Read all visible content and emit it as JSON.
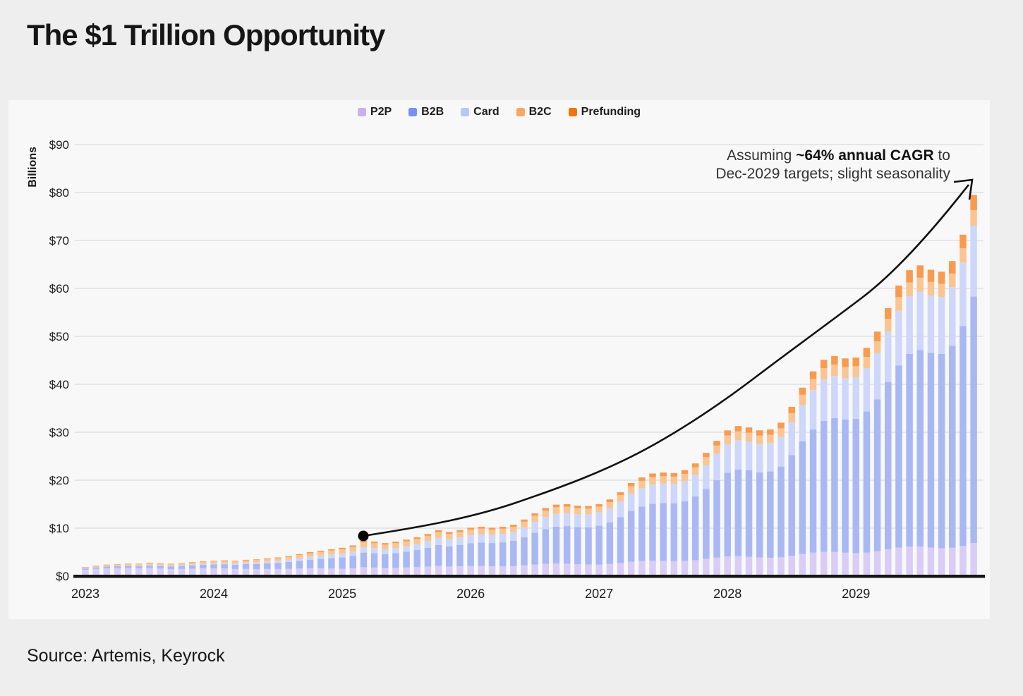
{
  "page": {
    "title": "The $1 Trillion Opportunity",
    "source": "Source: Artemis, Keyrock"
  },
  "annotation": {
    "prefix": "Assuming ",
    "bold": "~64% annual CAGR",
    "suffix": " to",
    "line2": "Dec-2029 targets; slight seasonality"
  },
  "colors": {
    "page_bg": "#eeeeee",
    "panel_bg": "#f8f8f8",
    "gridline": "#dcdcdc",
    "axis_line": "#161616",
    "text": "#1b1b1b",
    "trend_curve": "#111111"
  },
  "chart_data": {
    "type": "bar",
    "stacked": true,
    "title": "The $1 Trillion Opportunity",
    "ylabel": "Billions",
    "ylim": [
      0,
      90
    ],
    "y_ticks": [
      "$0",
      "$10",
      "$20",
      "$30",
      "$40",
      "$50",
      "$60",
      "$70",
      "$80",
      "$90"
    ],
    "x_year_labels": [
      "2023",
      "2024",
      "2025",
      "2026",
      "2027",
      "2028",
      "2029"
    ],
    "granularity": "monthly",
    "bars_per_year": 12,
    "legend_position": "top",
    "grid": true,
    "series": [
      {
        "name": "P2P",
        "legend_color": "#c7b1f1",
        "bar_color": "#d9cdf5",
        "values": [
          1.33,
          1.5,
          1.6,
          1.63,
          1.65,
          1.6,
          1.68,
          1.57,
          1.47,
          1.49,
          1.55,
          1.6,
          1.6,
          1.58,
          1.47,
          1.5,
          1.47,
          1.48,
          1.48,
          1.51,
          1.56,
          1.6,
          1.59,
          1.57,
          1.53,
          1.64,
          1.86,
          1.78,
          1.68,
          1.72,
          1.79,
          1.87,
          1.99,
          2.14,
          2.01,
          2.06,
          2.12,
          2.12,
          2.04,
          2.03,
          2.07,
          2.23,
          2.42,
          2.57,
          2.63,
          2.59,
          2.47,
          2.4,
          2.4,
          2.53,
          2.73,
          2.98,
          3.12,
          3.2,
          3.19,
          3.13,
          3.17,
          3.32,
          3.58,
          3.87,
          4.1,
          4.15,
          4.03,
          3.88,
          3.83,
          3.92,
          4.24,
          4.62,
          4.91,
          5.07,
          5.05,
          4.88,
          4.79,
          4.92,
          5.19,
          5.59,
          5.96,
          6.17,
          6.16,
          5.96,
          5.82,
          5.91,
          6.29,
          6.89
        ]
      },
      {
        "name": "B2B",
        "legend_color": "#7b8ff2",
        "bar_color": "#a9b8f3",
        "values": [
          0.27,
          0.33,
          0.38,
          0.43,
          0.47,
          0.49,
          0.56,
          0.57,
          0.57,
          0.62,
          0.7,
          0.78,
          0.83,
          0.9,
          0.91,
          1.0,
          1.07,
          1.18,
          1.29,
          1.44,
          1.63,
          1.83,
          2.0,
          2.17,
          2.36,
          2.6,
          3.05,
          3.01,
          2.92,
          3.09,
          3.31,
          3.57,
          3.93,
          4.34,
          4.22,
          4.46,
          4.75,
          4.9,
          4.86,
          5.02,
          5.28,
          5.89,
          6.62,
          7.25,
          7.7,
          7.84,
          7.77,
          7.8,
          8.1,
          8.69,
          9.55,
          10.65,
          11.36,
          11.87,
          12.04,
          12.05,
          12.45,
          13.31,
          14.63,
          16.13,
          17.48,
          18.1,
          18.03,
          17.78,
          18.0,
          18.93,
          21.0,
          23.51,
          25.69,
          27.29,
          27.92,
          27.77,
          28.04,
          29.41,
          31.66,
          34.87,
          37.98,
          40.17,
          40.99,
          40.6,
          40.53,
          42.13,
          45.87,
          51.44
        ]
      },
      {
        "name": "Card",
        "legend_color": "#b9c6f8",
        "bar_color": "#cdd7fa",
        "values": [
          0.06,
          0.07,
          0.09,
          0.11,
          0.12,
          0.13,
          0.15,
          0.16,
          0.16,
          0.18,
          0.21,
          0.23,
          0.26,
          0.28,
          0.29,
          0.32,
          0.35,
          0.39,
          0.43,
          0.48,
          0.55,
          0.63,
          0.69,
          0.76,
          0.83,
          0.91,
          1.07,
          1.05,
          1.02,
          1.08,
          1.16,
          1.25,
          1.38,
          1.52,
          1.48,
          1.56,
          1.67,
          1.72,
          1.7,
          1.75,
          1.84,
          2.05,
          2.29,
          2.51,
          2.66,
          2.7,
          2.67,
          2.68,
          2.78,
          2.97,
          3.27,
          3.64,
          3.88,
          4.05,
          4.1,
          4.1,
          4.24,
          4.52,
          4.97,
          5.48,
          5.93,
          6.09,
          6.02,
          5.89,
          5.92,
          6.17,
          6.8,
          7.55,
          8.18,
          8.63,
          8.76,
          8.64,
          8.66,
          9.03,
          9.65,
          10.55,
          11.41,
          11.99,
          12.15,
          11.96,
          11.85,
          12.24,
          13.23,
          14.74
        ]
      },
      {
        "name": "B2C",
        "legend_color": "#f9a763",
        "bar_color": "#fbc493",
        "values": [
          0.19,
          0.22,
          0.25,
          0.26,
          0.28,
          0.28,
          0.31,
          0.3,
          0.29,
          0.31,
          0.34,
          0.37,
          0.38,
          0.4,
          0.4,
          0.43,
          0.46,
          0.49,
          0.53,
          0.58,
          0.64,
          0.71,
          0.77,
          0.83,
          0.89,
          0.94,
          1.07,
          1.02,
          0.95,
          0.97,
          1.01,
          1.05,
          1.11,
          1.19,
          1.11,
          1.13,
          1.16,
          1.15,
          1.1,
          1.09,
          1.11,
          1.18,
          1.28,
          1.34,
          1.37,
          1.33,
          1.26,
          1.21,
          1.2,
          1.25,
          1.34,
          1.46,
          1.51,
          1.53,
          1.51,
          1.47,
          1.47,
          1.53,
          1.63,
          1.74,
          1.82,
          1.85,
          1.81,
          1.75,
          1.73,
          1.79,
          1.94,
          2.13,
          2.28,
          2.37,
          2.37,
          2.31,
          2.28,
          2.34,
          2.46,
          2.66,
          2.83,
          2.92,
          2.92,
          2.82,
          2.75,
          2.79,
          2.97,
          3.24
        ]
      },
      {
        "name": "Prefunding",
        "legend_color": "#f3740e",
        "bar_color": "#f89b4f",
        "values": [
          0.06,
          0.07,
          0.08,
          0.08,
          0.09,
          0.09,
          0.1,
          0.1,
          0.1,
          0.1,
          0.11,
          0.12,
          0.13,
          0.13,
          0.13,
          0.15,
          0.15,
          0.16,
          0.17,
          0.19,
          0.21,
          0.24,
          0.25,
          0.27,
          0.3,
          0.31,
          0.36,
          0.34,
          0.32,
          0.33,
          0.34,
          0.36,
          0.38,
          0.41,
          0.38,
          0.39,
          0.4,
          0.41,
          0.4,
          0.4,
          0.41,
          0.45,
          0.49,
          0.53,
          0.55,
          0.54,
          0.53,
          0.52,
          0.53,
          0.56,
          0.61,
          0.68,
          0.72,
          0.75,
          0.76,
          0.75,
          0.77,
          0.82,
          0.9,
          0.99,
          1.06,
          1.11,
          1.11,
          1.1,
          1.12,
          1.19,
          1.32,
          1.49,
          1.64,
          1.75,
          1.8,
          1.8,
          1.82,
          1.9,
          2.04,
          2.24,
          2.42,
          2.55,
          2.59,
          2.56,
          2.54,
          2.63,
          2.85,
          3.18
        ]
      }
    ],
    "trend_curve": {
      "description": "smooth CAGR curve drawn from a dot above Mar-2025 to an arrowhead above Dec-2029",
      "start": {
        "x": "Mar 2025",
        "value_billions": 8.4
      },
      "end": {
        "x": "Dec 2029",
        "value_billions": 83
      }
    }
  }
}
